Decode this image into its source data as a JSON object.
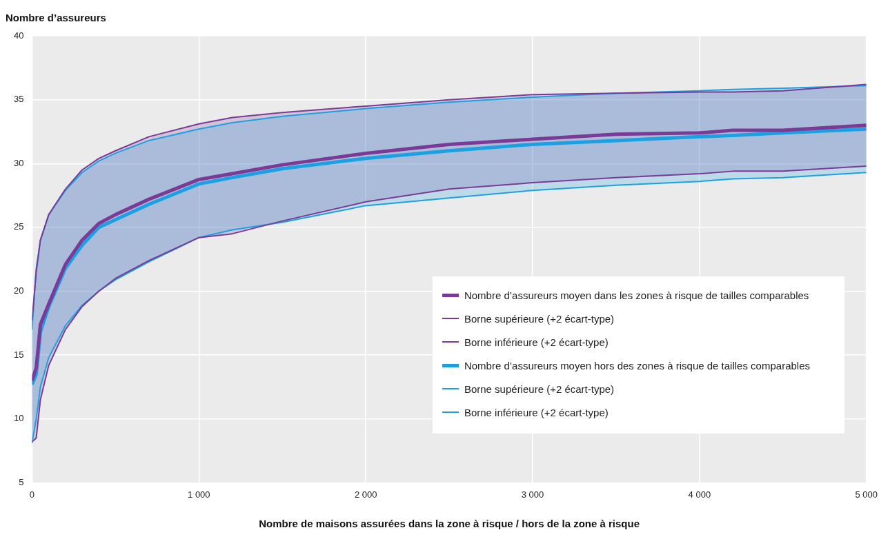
{
  "chart_data": {
    "type": "line",
    "ylabel": "Nombre d’assureurs",
    "xlabel": "Nombre de maisons assurées dans la zone à risque / hors de la zone à risque",
    "x": [
      0,
      25,
      50,
      100,
      200,
      300,
      400,
      500,
      700,
      1000,
      1200,
      1500,
      2000,
      2500,
      3000,
      3500,
      4000,
      4200,
      4500,
      5000
    ],
    "series": [
      {
        "name": "Nombre d’assureurs moyen dans les zones à risque de tailles comparables",
        "color": "#7b3a96",
        "values": [
          13,
          14,
          17.4,
          19,
          22.1,
          24,
          25.3,
          26,
          27.2,
          28.75,
          29.2,
          29.9,
          30.8,
          31.5,
          31.9,
          32.3,
          32.4,
          32.6,
          32.6,
          33.0
        ],
        "lower": [
          8.2,
          8.5,
          11.5,
          14.2,
          17,
          18.8,
          20.0,
          21.0,
          22.4,
          24.2,
          24.5,
          25.5,
          27.0,
          28.0,
          28.5,
          28.9,
          29.2,
          29.4,
          29.4,
          29.8
        ],
        "upper": [
          17.7,
          21.5,
          24,
          26,
          28,
          29.5,
          30.4,
          31,
          32.1,
          33.1,
          33.6,
          34.0,
          34.5,
          35.0,
          35.4,
          35.5,
          35.6,
          35.6,
          35.7,
          36.2
        ]
      },
      {
        "name": "Borne supérieure (+2 écart-type)",
        "color": "#7b3a96",
        "values": [
          17.7,
          21.5,
          24,
          26,
          28,
          29.5,
          30.4,
          31,
          32.1,
          33.1,
          33.6,
          34.0,
          34.5,
          35.0,
          35.4,
          35.5,
          35.6,
          35.6,
          35.7,
          36.2
        ]
      },
      {
        "name": "Borne inférieure (+2 écart-type)",
        "color": "#7b3a96",
        "values": [
          8.2,
          8.5,
          11.5,
          14.2,
          17,
          18.8,
          20.0,
          21.0,
          22.4,
          24.2,
          24.5,
          25.5,
          27.0,
          28.0,
          28.5,
          28.9,
          29.2,
          29.4,
          29.4,
          29.8
        ]
      },
      {
        "name": "Nombre d’assureurs moyen hors des zones à risque de tailles comparables",
        "color": "#1ba1e2",
        "values": [
          12.7,
          13.5,
          16.8,
          18.8,
          21.8,
          23.6,
          25.0,
          25.6,
          26.8,
          28.4,
          28.9,
          29.6,
          30.4,
          31.0,
          31.5,
          31.8,
          32.1,
          32.2,
          32.4,
          32.7
        ],
        "lower": [
          8.1,
          10,
          12.5,
          14.8,
          17.3,
          18.9,
          20.0,
          20.9,
          22.3,
          24.2,
          24.8,
          25.4,
          26.7,
          27.3,
          27.9,
          28.3,
          28.6,
          28.8,
          28.9,
          29.3
        ],
        "upper": [
          17.0,
          21.8,
          24,
          26,
          27.9,
          29.3,
          30.2,
          30.8,
          31.8,
          32.7,
          33.2,
          33.7,
          34.3,
          34.8,
          35.2,
          35.5,
          35.7,
          35.8,
          35.9,
          36.1
        ]
      },
      {
        "name": "Borne supérieure (+2 écart-type)",
        "color": "#1ba1e2",
        "values": [
          17.0,
          21.8,
          24,
          26,
          27.9,
          29.3,
          30.2,
          30.8,
          31.8,
          32.7,
          33.2,
          33.7,
          34.3,
          34.8,
          35.2,
          35.5,
          35.7,
          35.8,
          35.9,
          36.1
        ]
      },
      {
        "name": "Borne inférieure (+2 écart-type)",
        "color": "#1ba1e2",
        "values": [
          8.1,
          10,
          12.5,
          14.8,
          17.3,
          18.9,
          20.0,
          20.9,
          22.3,
          24.2,
          24.8,
          25.4,
          26.7,
          27.3,
          27.9,
          28.3,
          28.6,
          28.8,
          28.9,
          29.3
        ]
      }
    ],
    "xlim": [
      0,
      5000
    ],
    "xticks": [
      0,
      {
        "value": 1000,
        "label": "1 000"
      },
      {
        "value": 2000,
        "label": "2 000"
      },
      {
        "value": 3000,
        "label": "3 000"
      },
      {
        "value": 4000,
        "label": "4 000"
      },
      {
        "value": 5000,
        "label": "5 000"
      }
    ],
    "ylim": [
      5,
      40
    ],
    "yticks": [
      5,
      10,
      15,
      20,
      25,
      30,
      35,
      40
    ],
    "grid": true,
    "legend": "bottom right",
    "marker": "none",
    "line_style": "solid"
  }
}
